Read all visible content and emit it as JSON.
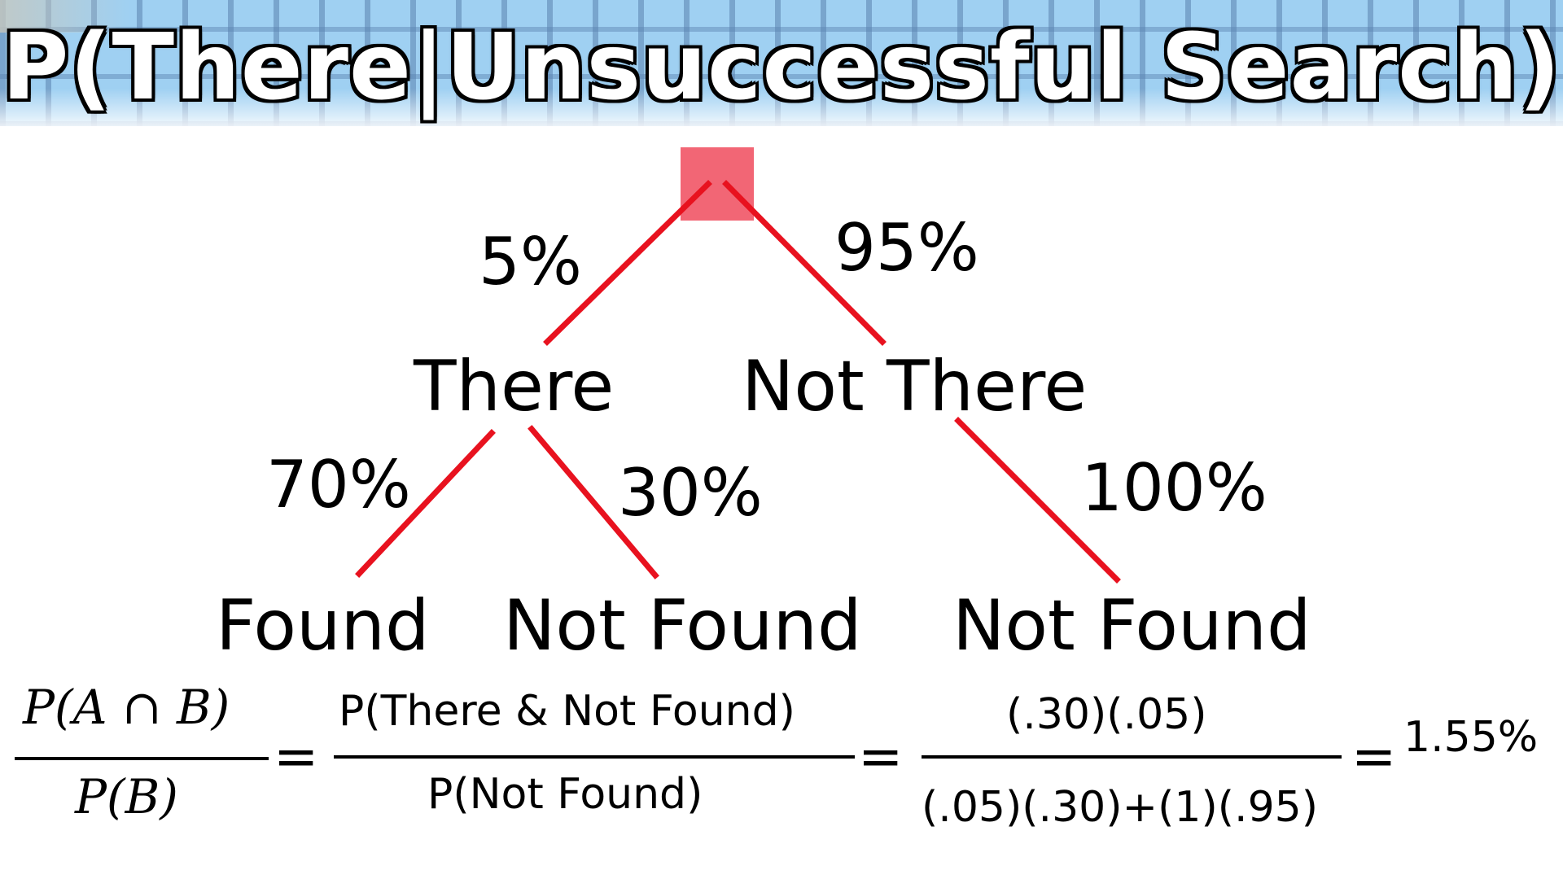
{
  "title": "P(There|Unsuccessful Search)",
  "tree": {
    "root": {
      "label": ""
    },
    "branches": {
      "there": "5%",
      "not_there": "95%",
      "there_found": "70%",
      "there_not_found": "30%",
      "not_there_not_found": "100%"
    },
    "nodes": {
      "there": "There",
      "not_there": "Not There",
      "found": "Found",
      "not_found_1": "Not Found",
      "not_found_2": "Not Found"
    }
  },
  "formula": {
    "general_numerator": "P(A ∩ B)",
    "general_denominator": "P(B)",
    "named_numerator": "P(There & Not Found)",
    "named_denominator": "P(Not Found)",
    "numeric_numerator": "(.30)(.05)",
    "numeric_denominator": "(.05)(.30)+(1)(.95)",
    "equals": "=",
    "result": "1.55%"
  },
  "colors": {
    "edge": "#e8121f",
    "root_node": "#ee3b4e",
    "banner": "#9fd0f2"
  }
}
